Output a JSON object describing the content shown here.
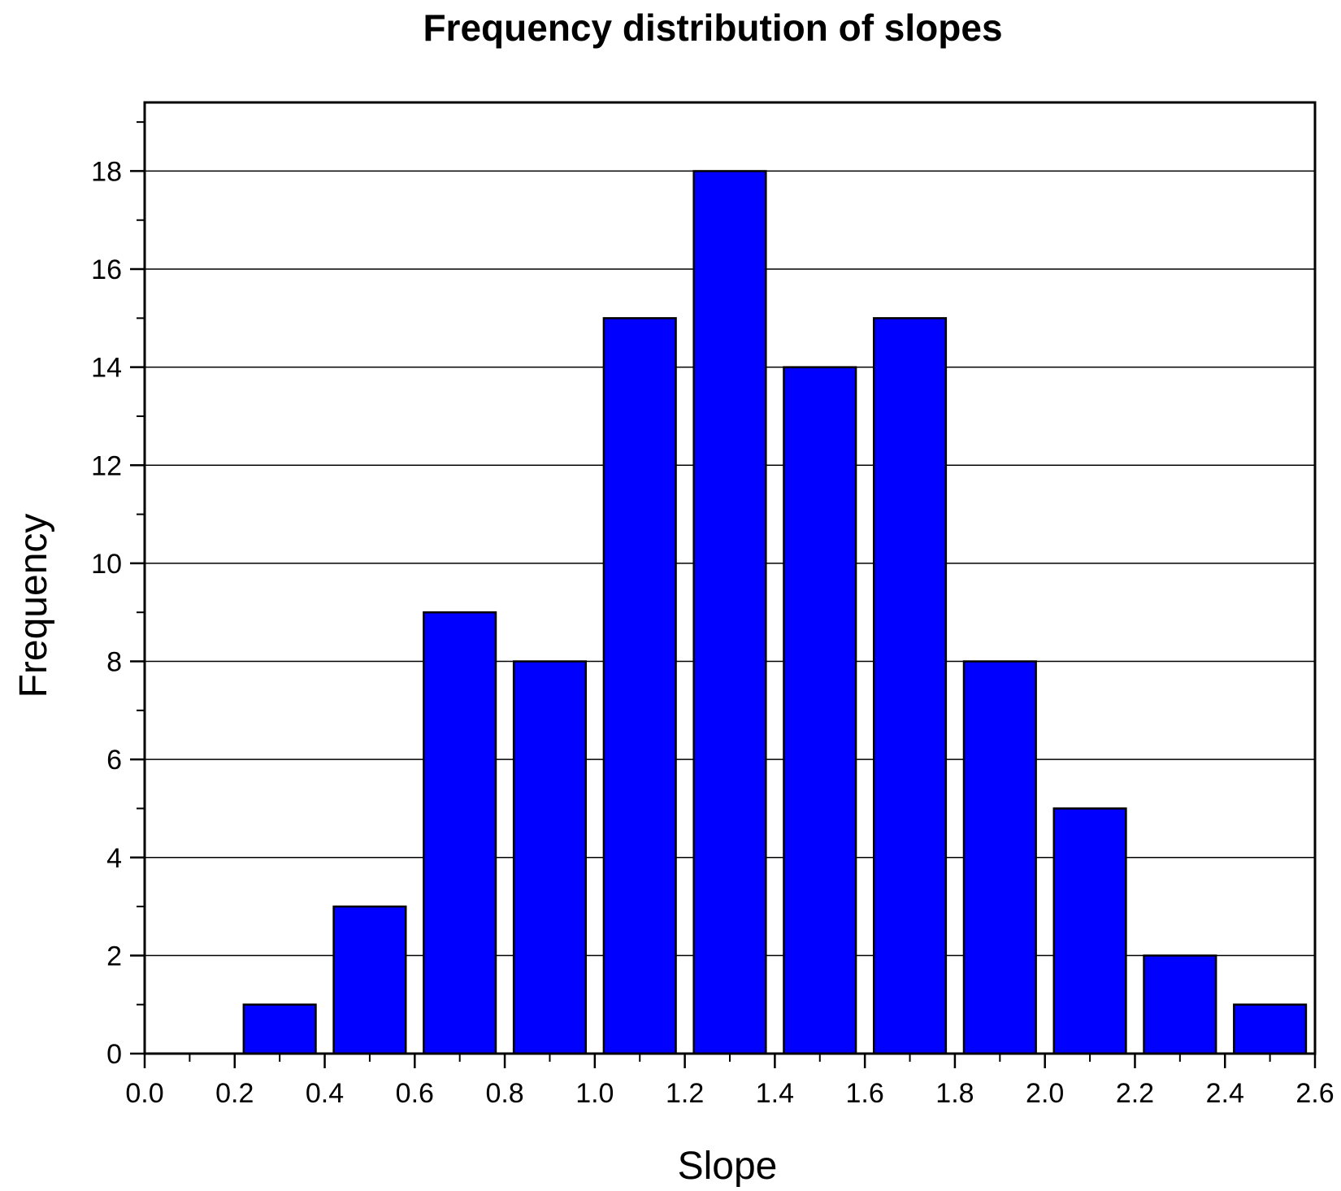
{
  "chart_data": {
    "type": "bar",
    "title": "Frequency distribution of slopes",
    "xlabel": "Slope",
    "ylabel": "Frequency",
    "bin_width": 0.2,
    "x": [
      0.3,
      0.5,
      0.7,
      0.9,
      1.1,
      1.3,
      1.5,
      1.7,
      1.9,
      2.1,
      2.3,
      2.5
    ],
    "values": [
      1,
      3,
      9,
      8,
      15,
      18,
      14,
      15,
      8,
      5,
      2,
      1
    ],
    "xlim": [
      0.0,
      2.6
    ],
    "ylim": [
      0,
      19.4
    ],
    "xticks": [
      "0.0",
      "0.2",
      "0.4",
      "0.6",
      "0.8",
      "1.0",
      "1.2",
      "1.4",
      "1.6",
      "1.8",
      "2.0",
      "2.2",
      "2.4",
      "2.6"
    ],
    "yticks": [
      "0",
      "2",
      "4",
      "6",
      "8",
      "10",
      "12",
      "14",
      "16",
      "18"
    ],
    "grid": "horizontal",
    "legend": "none",
    "colors": {
      "bar_fill": "#0000ff",
      "bar_edge": "#000000",
      "grid": "#000000",
      "axis": "#000000"
    }
  }
}
